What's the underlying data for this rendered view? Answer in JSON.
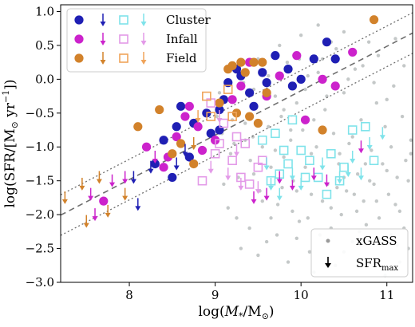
{
  "chart_data": {
    "type": "scatter",
    "xlabel_parts": {
      "pre": "log(",
      "sym": "M",
      "sub": "*",
      "mid": "/M",
      "sun": "⊙",
      "post": ")"
    },
    "ylabel_parts": {
      "pre": "log(SFR/[M",
      "sun": "⊙",
      "mid": " yr",
      "sup": "−1",
      "post": "])"
    },
    "xlim": [
      7.2,
      11.3
    ],
    "ylim": [
      -3.0,
      1.1
    ],
    "xticks": [
      {
        "v": 8,
        "label": "8"
      },
      {
        "v": 9,
        "label": "9"
      },
      {
        "v": 10,
        "label": "10"
      },
      {
        "v": 11,
        "label": "11"
      }
    ],
    "yticks": [
      {
        "v": 1.0,
        "label": "1.0"
      },
      {
        "v": 0.5,
        "label": "0.5"
      },
      {
        "v": 0.0,
        "label": "0.0"
      },
      {
        "v": -0.5,
        "label": "−0.5"
      },
      {
        "v": -1.0,
        "label": "−1.0"
      },
      {
        "v": -1.5,
        "label": "−1.5"
      },
      {
        "v": -2.0,
        "label": "−2.0"
      },
      {
        "v": -2.5,
        "label": "−2.5"
      },
      {
        "v": -3.0,
        "label": "−3.0"
      }
    ],
    "colors": {
      "cluster": "#1f1fb4",
      "infall": "#cc22cc",
      "field": "#d2822b",
      "cluster_light": "#7fe3ea",
      "infall_light": "#e39ae8",
      "field_light": "#f0a45a",
      "xgass": "#c4c8c8",
      "line": "#6e6e6e"
    },
    "main_sequence": {
      "slope": 0.656,
      "intercept": -6.73,
      "offset": 0.3
    },
    "legend_groups": [
      {
        "label": "Cluster",
        "key": "cluster"
      },
      {
        "label": "Infall",
        "key": "infall"
      },
      {
        "label": "Field",
        "key": "field"
      }
    ],
    "legend_bottom": {
      "xgass": "xGASS",
      "sfrmax": "SFR",
      "sfrmax_sub": "max"
    },
    "series": [
      {
        "name": "Cluster",
        "marker": "filled-circle",
        "color_key": "cluster",
        "points": [
          [
            9.25,
            0.15
          ],
          [
            9.3,
            0.05
          ],
          [
            9.15,
            -0.05
          ],
          [
            9.05,
            -0.45
          ],
          [
            9.1,
            -0.3
          ],
          [
            9.4,
            -0.2
          ],
          [
            9.6,
            -0.05
          ],
          [
            9.85,
            0.15
          ],
          [
            10.0,
            0.0
          ],
          [
            10.15,
            0.3
          ],
          [
            10.3,
            0.55
          ],
          [
            9.7,
            0.35
          ],
          [
            9.45,
            -0.4
          ],
          [
            9.9,
            -0.1
          ],
          [
            8.75,
            -0.65
          ],
          [
            8.9,
            -0.5
          ],
          [
            8.55,
            -0.7
          ],
          [
            8.4,
            -0.9
          ],
          [
            8.6,
            -0.4
          ],
          [
            8.95,
            -0.8
          ],
          [
            8.7,
            -1.15
          ],
          [
            8.3,
            -1.25
          ],
          [
            9.05,
            -0.75
          ],
          [
            8.5,
            -1.45
          ],
          [
            10.4,
            0.3
          ],
          [
            9.55,
            0.1
          ]
        ]
      },
      {
        "name": "Infall",
        "marker": "filled-circle",
        "color_key": "infall",
        "points": [
          [
            9.4,
            0.25
          ],
          [
            9.75,
            0.05
          ],
          [
            10.25,
            0.0
          ],
          [
            10.4,
            -0.1
          ],
          [
            9.2,
            -0.3
          ],
          [
            8.7,
            -0.4
          ],
          [
            8.65,
            -0.55
          ],
          [
            8.55,
            -0.85
          ],
          [
            8.85,
            -1.05
          ],
          [
            8.45,
            -1.15
          ],
          [
            8.4,
            -1.3
          ],
          [
            8.2,
            -1.0
          ],
          [
            9.6,
            -0.25
          ],
          [
            9.95,
            0.35
          ],
          [
            7.7,
            -1.8
          ],
          [
            8.8,
            -0.7
          ],
          [
            9.0,
            -0.9
          ],
          [
            10.6,
            0.4
          ],
          [
            10.05,
            -0.6
          ],
          [
            9.3,
            -0.1
          ]
        ]
      },
      {
        "name": "Field",
        "marker": "filled-circle",
        "color_key": "field",
        "points": [
          [
            9.3,
            0.25
          ],
          [
            9.45,
            0.25
          ],
          [
            9.55,
            0.25
          ],
          [
            9.15,
            0.15
          ],
          [
            8.35,
            -0.45
          ],
          [
            8.1,
            -0.7
          ],
          [
            8.6,
            -0.95
          ],
          [
            8.75,
            -1.25
          ],
          [
            8.5,
            -1.1
          ],
          [
            9.25,
            -0.5
          ],
          [
            9.4,
            -0.55
          ],
          [
            10.85,
            0.88
          ],
          [
            10.25,
            -0.75
          ],
          [
            9.6,
            -0.2
          ],
          [
            9.35,
            0.1
          ],
          [
            9.2,
            0.2
          ],
          [
            9.5,
            -0.65
          ],
          [
            9.05,
            -0.35
          ]
        ]
      },
      {
        "name": "Cluster limits",
        "marker": "open-square",
        "color_key": "cluster_light",
        "points": [
          [
            9.55,
            -0.9
          ],
          [
            9.7,
            -0.8
          ],
          [
            9.85,
            -1.25
          ],
          [
            9.75,
            -1.4
          ],
          [
            10.0,
            -1.05
          ],
          [
            10.2,
            -1.45
          ],
          [
            10.35,
            -1.1
          ],
          [
            10.5,
            -1.3
          ],
          [
            9.9,
            -0.6
          ],
          [
            10.1,
            -1.2
          ],
          [
            10.6,
            -0.75
          ],
          [
            10.75,
            -0.7
          ],
          [
            10.45,
            -1.5
          ],
          [
            9.65,
            -1.5
          ],
          [
            10.3,
            -1.7
          ],
          [
            10.85,
            -1.2
          ],
          [
            10.05,
            -1.45
          ],
          [
            9.8,
            -1.05
          ]
        ]
      },
      {
        "name": "Infall limits",
        "marker": "open-square",
        "color_key": "infall_light",
        "points": [
          [
            8.95,
            -0.35
          ],
          [
            9.1,
            -0.65
          ],
          [
            9.05,
            -0.95
          ],
          [
            9.2,
            -1.2
          ],
          [
            9.35,
            -0.95
          ],
          [
            9.5,
            -1.3
          ],
          [
            9.4,
            -1.55
          ],
          [
            9.3,
            -1.45
          ],
          [
            9.55,
            -1.2
          ],
          [
            9.0,
            -1.1
          ],
          [
            9.25,
            -0.85
          ],
          [
            8.85,
            -1.5
          ]
        ]
      },
      {
        "name": "Field limits",
        "marker": "open-square",
        "color_key": "field_light",
        "points": [
          [
            8.9,
            -0.25
          ],
          [
            9.15,
            -0.15
          ],
          [
            9.2,
            -0.55
          ],
          [
            8.95,
            -0.55
          ]
        ]
      },
      {
        "name": "Cluster upper limits",
        "marker": "down-arrow",
        "color_key": "cluster",
        "points": [
          [
            8.05,
            -1.45
          ],
          [
            8.25,
            -1.3
          ],
          [
            8.55,
            -1.25
          ],
          [
            8.1,
            -1.85
          ],
          [
            8.65,
            -1.05
          ]
        ]
      },
      {
        "name": "Infall upper limits",
        "marker": "down-arrow",
        "color_key": "infall",
        "points": [
          [
            7.55,
            -1.7
          ],
          [
            7.8,
            -1.5
          ],
          [
            7.95,
            -1.45
          ],
          [
            7.6,
            -2.0
          ],
          [
            8.3,
            -1.15
          ],
          [
            9.75,
            -1.45
          ],
          [
            9.9,
            -1.55
          ],
          [
            10.15,
            -1.4
          ],
          [
            10.3,
            -1.5
          ],
          [
            10.7,
            -1.0
          ],
          [
            9.6,
            -1.7
          ],
          [
            9.45,
            -1.75
          ]
        ]
      },
      {
        "name": "Field upper limits",
        "marker": "down-arrow",
        "color_key": "field",
        "points": [
          [
            7.25,
            -1.75
          ],
          [
            7.45,
            -1.55
          ],
          [
            7.65,
            -1.45
          ],
          [
            7.75,
            -1.95
          ],
          [
            7.95,
            -1.7
          ],
          [
            7.5,
            -2.1
          ],
          [
            8.75,
            -0.95
          ]
        ]
      },
      {
        "name": "Cluster limit arrows",
        "marker": "down-arrow-light",
        "color_key": "cluster_light",
        "points": [
          [
            9.6,
            -1.25
          ],
          [
            9.9,
            -1.4
          ],
          [
            10.0,
            -1.55
          ],
          [
            10.25,
            -1.25
          ],
          [
            10.45,
            -1.45
          ],
          [
            10.6,
            -1.15
          ],
          [
            10.8,
            -0.95
          ],
          [
            10.95,
            -0.8
          ],
          [
            10.55,
            -1.35
          ],
          [
            9.75,
            -1.7
          ],
          [
            10.7,
            -1.4
          ],
          [
            9.65,
            -1.55
          ]
        ]
      },
      {
        "name": "Infall limit arrows",
        "marker": "down-arrow-light",
        "color_key": "infall_light",
        "points": [
          [
            8.95,
            -1.3
          ],
          [
            9.15,
            -1.4
          ],
          [
            9.25,
            -1.05
          ],
          [
            9.3,
            -1.55
          ],
          [
            9.5,
            -1.6
          ],
          [
            9.05,
            -0.55
          ]
        ]
      },
      {
        "name": "Field limit arrows",
        "marker": "down-arrow-light",
        "color_key": "field_light",
        "points": [
          [
            8.8,
            -0.55
          ]
        ]
      }
    ],
    "xgass_points": [
      [
        9.02,
        -0.55
      ],
      [
        9.08,
        -0.8
      ],
      [
        9.12,
        -0.3
      ],
      [
        9.18,
        -1.1
      ],
      [
        9.22,
        -0.95
      ],
      [
        9.27,
        -1.45
      ],
      [
        9.33,
        -0.05
      ],
      [
        9.35,
        -0.65
      ],
      [
        9.41,
        -1.2
      ],
      [
        9.44,
        -0.85
      ],
      [
        9.48,
        -0.4
      ],
      [
        9.52,
        -1.65
      ],
      [
        9.55,
        -1.0
      ],
      [
        9.58,
        0.1
      ],
      [
        9.62,
        -0.7
      ],
      [
        9.65,
        -1.3
      ],
      [
        9.7,
        -0.25
      ],
      [
        9.73,
        -1.85
      ],
      [
        9.77,
        -0.55
      ],
      [
        9.8,
        -1.15
      ],
      [
        9.84,
        0.25
      ],
      [
        9.88,
        -0.9
      ],
      [
        9.91,
        -1.5
      ],
      [
        9.95,
        -0.35
      ],
      [
        9.98,
        -2.1
      ],
      [
        10.02,
        -0.75
      ],
      [
        10.05,
        -1.3
      ],
      [
        10.08,
        0.05
      ],
      [
        10.12,
        -1.7
      ],
      [
        10.15,
        -0.6
      ],
      [
        10.18,
        -1.0
      ],
      [
        10.22,
        -2.3
      ],
      [
        10.25,
        0.3
      ],
      [
        10.28,
        -0.45
      ],
      [
        10.31,
        -1.55
      ],
      [
        10.35,
        -1.9
      ],
      [
        10.38,
        -0.8
      ],
      [
        10.41,
        0.45
      ],
      [
        10.44,
        -1.25
      ],
      [
        10.47,
        -2.0
      ],
      [
        10.5,
        -0.2
      ],
      [
        10.53,
        -1.65
      ],
      [
        10.56,
        -0.95
      ],
      [
        10.6,
        -2.4
      ],
      [
        10.63,
        0.15
      ],
      [
        10.66,
        -1.4
      ],
      [
        10.7,
        -0.6
      ],
      [
        10.73,
        -1.8
      ],
      [
        10.76,
        -2.15
      ],
      [
        10.79,
        0.55
      ],
      [
        10.82,
        -1.05
      ],
      [
        10.85,
        -1.55
      ],
      [
        10.88,
        -0.35
      ],
      [
        10.91,
        -2.05
      ],
      [
        10.95,
        -1.25
      ],
      [
        10.98,
        -0.7
      ],
      [
        11.02,
        -1.7
      ],
      [
        11.05,
        -2.3
      ],
      [
        11.08,
        -0.1
      ],
      [
        11.12,
        -1.45
      ],
      [
        11.15,
        -1.95
      ],
      [
        11.18,
        -0.55
      ],
      [
        11.22,
        -1.2
      ],
      [
        11.25,
        -2.5
      ],
      [
        11.28,
        -0.9
      ],
      [
        9.6,
        -2.4
      ],
      [
        9.85,
        -2.7
      ],
      [
        10.1,
        -2.55
      ],
      [
        10.4,
        -2.75
      ],
      [
        10.7,
        -2.65
      ],
      [
        9.4,
        -2.2
      ],
      [
        9.15,
        -1.9
      ],
      [
        9.3,
        -2.5
      ],
      [
        9.05,
        -0.2
      ],
      [
        9.5,
        0.3
      ],
      [
        9.75,
        0.5
      ],
      [
        10.0,
        0.65
      ],
      [
        10.2,
        0.8
      ],
      [
        10.5,
        0.7
      ],
      [
        10.9,
        0.35
      ],
      [
        11.1,
        0.6
      ],
      [
        11.2,
        0.2
      ],
      [
        9.9,
        -1.95
      ],
      [
        10.35,
        -2.2
      ],
      [
        10.65,
        -1.95
      ],
      [
        10.95,
        -2.45
      ],
      [
        11.15,
        -2.7
      ],
      [
        9.25,
        -2.05
      ],
      [
        9.65,
        -2.05
      ],
      [
        10.15,
        -2.85
      ],
      [
        11.0,
        -0.3
      ],
      [
        10.85,
        -0.05
      ],
      [
        9.45,
        -0.15
      ],
      [
        9.95,
        -1.65
      ],
      [
        10.45,
        -1.1
      ],
      [
        10.75,
        -1.25
      ],
      [
        9.1,
        -1.55
      ],
      [
        9.55,
        -1.8
      ],
      [
        10.25,
        -1.8
      ],
      [
        11.05,
        -1.0
      ],
      [
        11.25,
        -1.5
      ],
      [
        10.6,
        -0.85
      ],
      [
        10.3,
        -0.25
      ],
      [
        9.8,
        -0.45
      ],
      [
        9.2,
        -0.6
      ],
      [
        9.35,
        -0.9
      ],
      [
        9.7,
        -1.05
      ],
      [
        10.05,
        -0.15
      ],
      [
        10.55,
        0.0
      ],
      [
        10.8,
        -1.5
      ],
      [
        11.1,
        -1.85
      ],
      [
        11.2,
        -2.2
      ],
      [
        10.9,
        -2.35
      ],
      [
        10.5,
        -2.55
      ],
      [
        9.95,
        -2.35
      ],
      [
        9.5,
        -2.6
      ],
      [
        9.78,
        -1.6
      ],
      [
        10.12,
        -1.1
      ],
      [
        10.42,
        -1.6
      ],
      [
        10.68,
        -2.25
      ],
      [
        10.98,
        -2.9
      ],
      [
        9.88,
        -0.75
      ],
      [
        10.2,
        0.1
      ],
      [
        10.62,
        -1.7
      ],
      [
        11.0,
        -1.35
      ],
      [
        9.62,
        0.05
      ],
      [
        9.98,
        0.3
      ],
      [
        10.35,
        0.55
      ],
      [
        10.72,
        0.2
      ],
      [
        9.45,
        -1.4
      ],
      [
        9.72,
        -2.3
      ],
      [
        10.08,
        -2.05
      ],
      [
        10.5,
        -1.45
      ],
      [
        10.88,
        -1.8
      ],
      [
        11.12,
        -2.45
      ],
      [
        11.28,
        -1.1
      ]
    ]
  }
}
